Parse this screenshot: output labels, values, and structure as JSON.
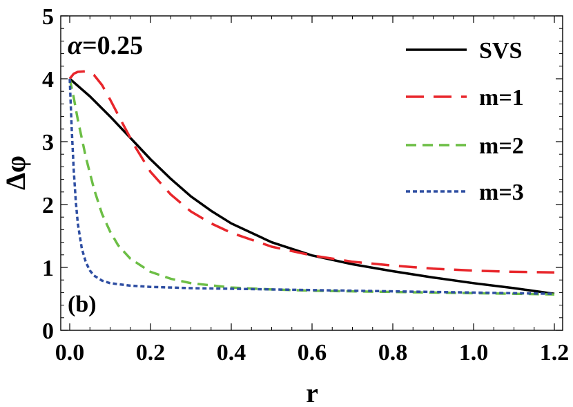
{
  "chart_data": {
    "type": "line",
    "title": "",
    "xlabel": "r",
    "ylabel": "Δφ",
    "xlim": [
      0,
      1.2
    ],
    "ylim": [
      0,
      5
    ],
    "x_ticks": [
      0,
      0.2,
      0.4,
      0.6,
      0.8,
      1.0,
      1.2
    ],
    "x_tick_labels": [
      "0.0",
      "0.2",
      "0.4",
      "0.6",
      "0.8",
      "1.0",
      "1.2"
    ],
    "y_ticks": [
      0,
      1,
      2,
      3,
      4,
      5
    ],
    "y_tick_labels": [
      "0",
      "1",
      "2",
      "3",
      "4",
      "5"
    ],
    "grid": false,
    "legend_position": "top-right",
    "annotations": {
      "alpha_symbol": "α",
      "alpha_value": "=0.25",
      "panel_label": "(b)"
    },
    "series": [
      {
        "name": "SVS",
        "color": "#000000",
        "style": "solid",
        "x": [
          0,
          0.05,
          0.1,
          0.15,
          0.2,
          0.25,
          0.3,
          0.35,
          0.4,
          0.5,
          0.6,
          0.7,
          0.8,
          0.9,
          1.0,
          1.1,
          1.2
        ],
        "y": [
          4.0,
          3.72,
          3.4,
          3.06,
          2.72,
          2.41,
          2.13,
          1.9,
          1.7,
          1.4,
          1.19,
          1.05,
          0.94,
          0.84,
          0.75,
          0.67,
          0.58
        ]
      },
      {
        "name": "m=1",
        "color": "#e8262b",
        "style": "long-dash",
        "x": [
          0,
          0.01,
          0.02,
          0.04,
          0.06,
          0.08,
          0.1,
          0.13,
          0.16,
          0.2,
          0.25,
          0.3,
          0.35,
          0.4,
          0.5,
          0.6,
          0.7,
          0.8,
          0.9,
          1.0,
          1.1,
          1.2
        ],
        "y": [
          4.0,
          4.08,
          4.11,
          4.12,
          4.06,
          3.9,
          3.67,
          3.3,
          2.94,
          2.52,
          2.16,
          1.89,
          1.7,
          1.55,
          1.33,
          1.19,
          1.09,
          1.03,
          0.98,
          0.95,
          0.93,
          0.92
        ]
      },
      {
        "name": "m=2",
        "color": "#6cbe45",
        "style": "dash",
        "x": [
          0,
          0.01,
          0.02,
          0.04,
          0.06,
          0.08,
          0.1,
          0.12,
          0.15,
          0.2,
          0.25,
          0.3,
          0.4,
          0.5,
          0.6,
          0.7,
          0.8,
          1.0,
          1.2
        ],
        "y": [
          4.0,
          3.7,
          3.35,
          2.75,
          2.25,
          1.85,
          1.57,
          1.35,
          1.14,
          0.93,
          0.82,
          0.75,
          0.68,
          0.65,
          0.63,
          0.62,
          0.61,
          0.59,
          0.57
        ]
      },
      {
        "name": "m=3",
        "color": "#2e4ea2",
        "style": "short-dash",
        "x": [
          0,
          0.005,
          0.01,
          0.015,
          0.02,
          0.03,
          0.04,
          0.05,
          0.06,
          0.08,
          0.1,
          0.15,
          0.2,
          0.3,
          0.4,
          0.6,
          0.8,
          1.0,
          1.2
        ],
        "y": [
          4.0,
          3.2,
          2.55,
          2.05,
          1.7,
          1.3,
          1.08,
          0.95,
          0.87,
          0.79,
          0.75,
          0.71,
          0.69,
          0.67,
          0.66,
          0.64,
          0.62,
          0.6,
          0.58
        ]
      }
    ]
  }
}
